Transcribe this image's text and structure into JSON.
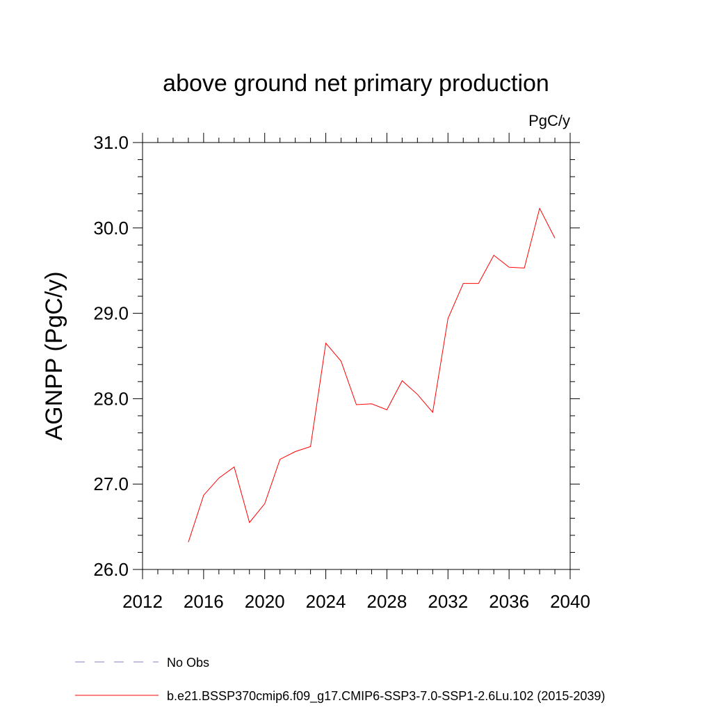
{
  "chart_data": {
    "type": "line",
    "title": "above ground net primary production",
    "units": "PgC/y",
    "ylabel": "AGNPP  (PgC/y)",
    "xlim": [
      2012,
      2040
    ],
    "ylim": [
      26.0,
      31.0
    ],
    "xticks": [
      2012,
      2016,
      2020,
      2024,
      2028,
      2032,
      2036,
      2040
    ],
    "xtick_labels": [
      "2012",
      "2016",
      "2020",
      "2024",
      "2028",
      "2032",
      "2036",
      "2040"
    ],
    "yticks": [
      26.0,
      27.0,
      28.0,
      29.0,
      30.0,
      31.0
    ],
    "ytick_labels": [
      "26.0",
      "27.0",
      "28.0",
      "29.0",
      "30.0",
      "31.0"
    ],
    "grid": false,
    "legend_position": "bottom-left",
    "series": [
      {
        "name": "b.e21.BSSP370cmip6.f09_g17.CMIP6-SSP3-7.0-SSP1-2.6Lu.102 (2015-2039)",
        "color": "#ff0000",
        "style": "solid",
        "x": [
          2015,
          2016,
          2017,
          2018,
          2019,
          2020,
          2021,
          2022,
          2023,
          2024,
          2025,
          2026,
          2027,
          2028,
          2029,
          2030,
          2031,
          2032,
          2033,
          2034,
          2035,
          2036,
          2037,
          2038,
          2039
        ],
        "y": [
          26.32,
          26.87,
          27.07,
          27.2,
          26.55,
          26.77,
          27.29,
          27.38,
          27.44,
          28.65,
          28.44,
          27.93,
          27.94,
          27.87,
          28.21,
          28.05,
          27.84,
          28.94,
          29.35,
          29.35,
          29.68,
          29.54,
          29.53,
          30.23,
          29.88
        ]
      }
    ],
    "legend": [
      {
        "label": "No Obs",
        "color": "#8080c0",
        "style": "dashed"
      },
      {
        "label": "b.e21.BSSP370cmip6.f09_g17.CMIP6-SSP3-7.0-SSP1-2.6Lu.102 (2015-2039)",
        "color": "#ff0000",
        "style": "solid"
      }
    ]
  }
}
